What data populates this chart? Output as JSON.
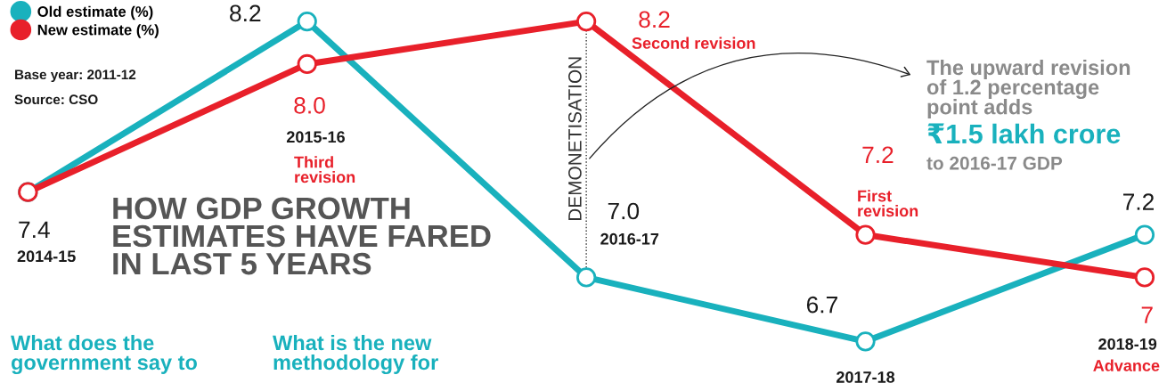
{
  "chart_data": {
    "type": "line",
    "title": "HOW GDP GROWTH\nESTIMATES HAVE FARED\nIN LAST 5 YEARS",
    "categories": [
      "2014-15",
      "2015-16",
      "2016-17",
      "2017-18",
      "2018-19"
    ],
    "series": [
      {
        "name": "Old estimate (%)",
        "color": "#19b1bd",
        "values": [
          7.4,
          8.2,
          7.0,
          6.7,
          7.2
        ],
        "value_labels": [
          "7.4",
          "8.2",
          "7.0",
          "6.7",
          "7.2"
        ]
      },
      {
        "name": "New estimate (%)",
        "color": "#e8202a",
        "values": [
          7.4,
          8.0,
          8.2,
          7.2,
          7
        ],
        "value_labels": [
          null,
          "8.0",
          "8.2",
          "7.2",
          "7"
        ]
      }
    ],
    "marker": "circle",
    "line_style": "solid",
    "legend": "top left",
    "ref_lines": [
      {
        "axis": "x",
        "value": "2016-17",
        "label": "DEMONETISATION",
        "line_style": "dotted"
      }
    ],
    "annotations": [
      "Base year: 2011-12",
      "Source: CSO",
      "Third\nrevision",
      "Second revision",
      "First\nrevision",
      "Advance",
      "The upward revision\nof 1.2 percentage\npoint adds",
      "₹1.5 lakh crore",
      "to 2016-17 GDP",
      "What does the\ngovernment say to",
      "What is the new\nmethodology for"
    ]
  }
}
